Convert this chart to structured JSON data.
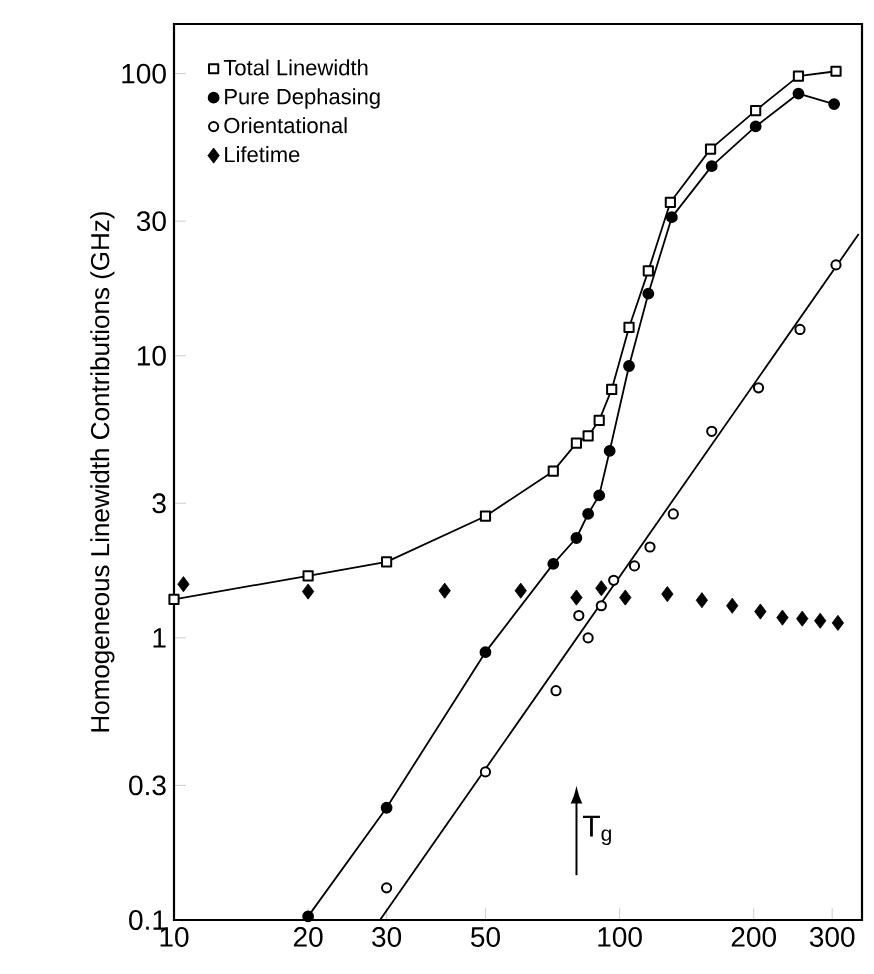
{
  "chart_data": {
    "type": "line",
    "ylabel": "Homogeneous Linewidth Contributions (GHz)",
    "log": "xy",
    "xlim": [
      10,
      350
    ],
    "ylim": [
      0.1,
      150
    ],
    "xticks": [
      10,
      20,
      30,
      50,
      100,
      200,
      300
    ],
    "yticks": [
      0.1,
      0.3,
      1,
      3,
      10,
      30,
      100
    ],
    "legend": "top left",
    "grid": false,
    "line_style": "solid",
    "annotations": [
      "T$_{g}$"
    ],
    "series": [
      {
        "name": "Total Linewidth",
        "marker": "square",
        "color": "#000000",
        "x": [
          10,
          20,
          30,
          50,
          71,
          80,
          85,
          90,
          96,
          105,
          116,
          130,
          160,
          202,
          252,
          306
        ],
        "values": [
          1.37,
          1.66,
          1.86,
          2.7,
          3.9,
          4.9,
          5.2,
          5.9,
          7.6,
          12.6,
          20,
          35,
          54,
          74,
          98,
          102
        ]
      },
      {
        "name": "Pure Dephasing",
        "marker": "circle",
        "color": "#000000",
        "x": [
          20,
          30,
          50,
          71,
          80,
          85,
          90,
          95,
          105,
          116,
          131,
          161,
          202,
          252,
          303
        ],
        "values": [
          0.103,
          0.25,
          0.89,
          1.83,
          2.26,
          2.75,
          3.2,
          4.6,
          9.2,
          16.6,
          31,
          47,
          65,
          85,
          78
        ]
      },
      {
        "name": "Orientational",
        "type": "scatter",
        "marker": "circle",
        "color": "#000000",
        "x": [
          30,
          50,
          72,
          81,
          85,
          91,
          97,
          108,
          117,
          132,
          161,
          205,
          254,
          306
        ],
        "values": [
          0.13,
          0.335,
          0.65,
          1.2,
          1.0,
          1.3,
          1.6,
          1.8,
          2.1,
          2.75,
          5.4,
          7.7,
          12.4,
          21
        ]
      },
      {
        "name": "Lifetime",
        "type": "scatter",
        "marker": "diamond",
        "color": "#000000",
        "x": [
          10.5,
          20,
          40.5,
          60,
          80,
          91,
          103,
          128,
          153,
          179,
          207,
          232,
          257,
          282,
          309
        ],
        "values": [
          1.55,
          1.46,
          1.47,
          1.47,
          1.39,
          1.5,
          1.39,
          1.43,
          1.36,
          1.3,
          1.24,
          1.18,
          1.17,
          1.15,
          1.13
        ]
      },
      {
        "marker": "none",
        "color": "#000000",
        "x": [
          29,
          344
        ],
        "values": [
          0.1,
          27
        ]
      }
    ]
  }
}
